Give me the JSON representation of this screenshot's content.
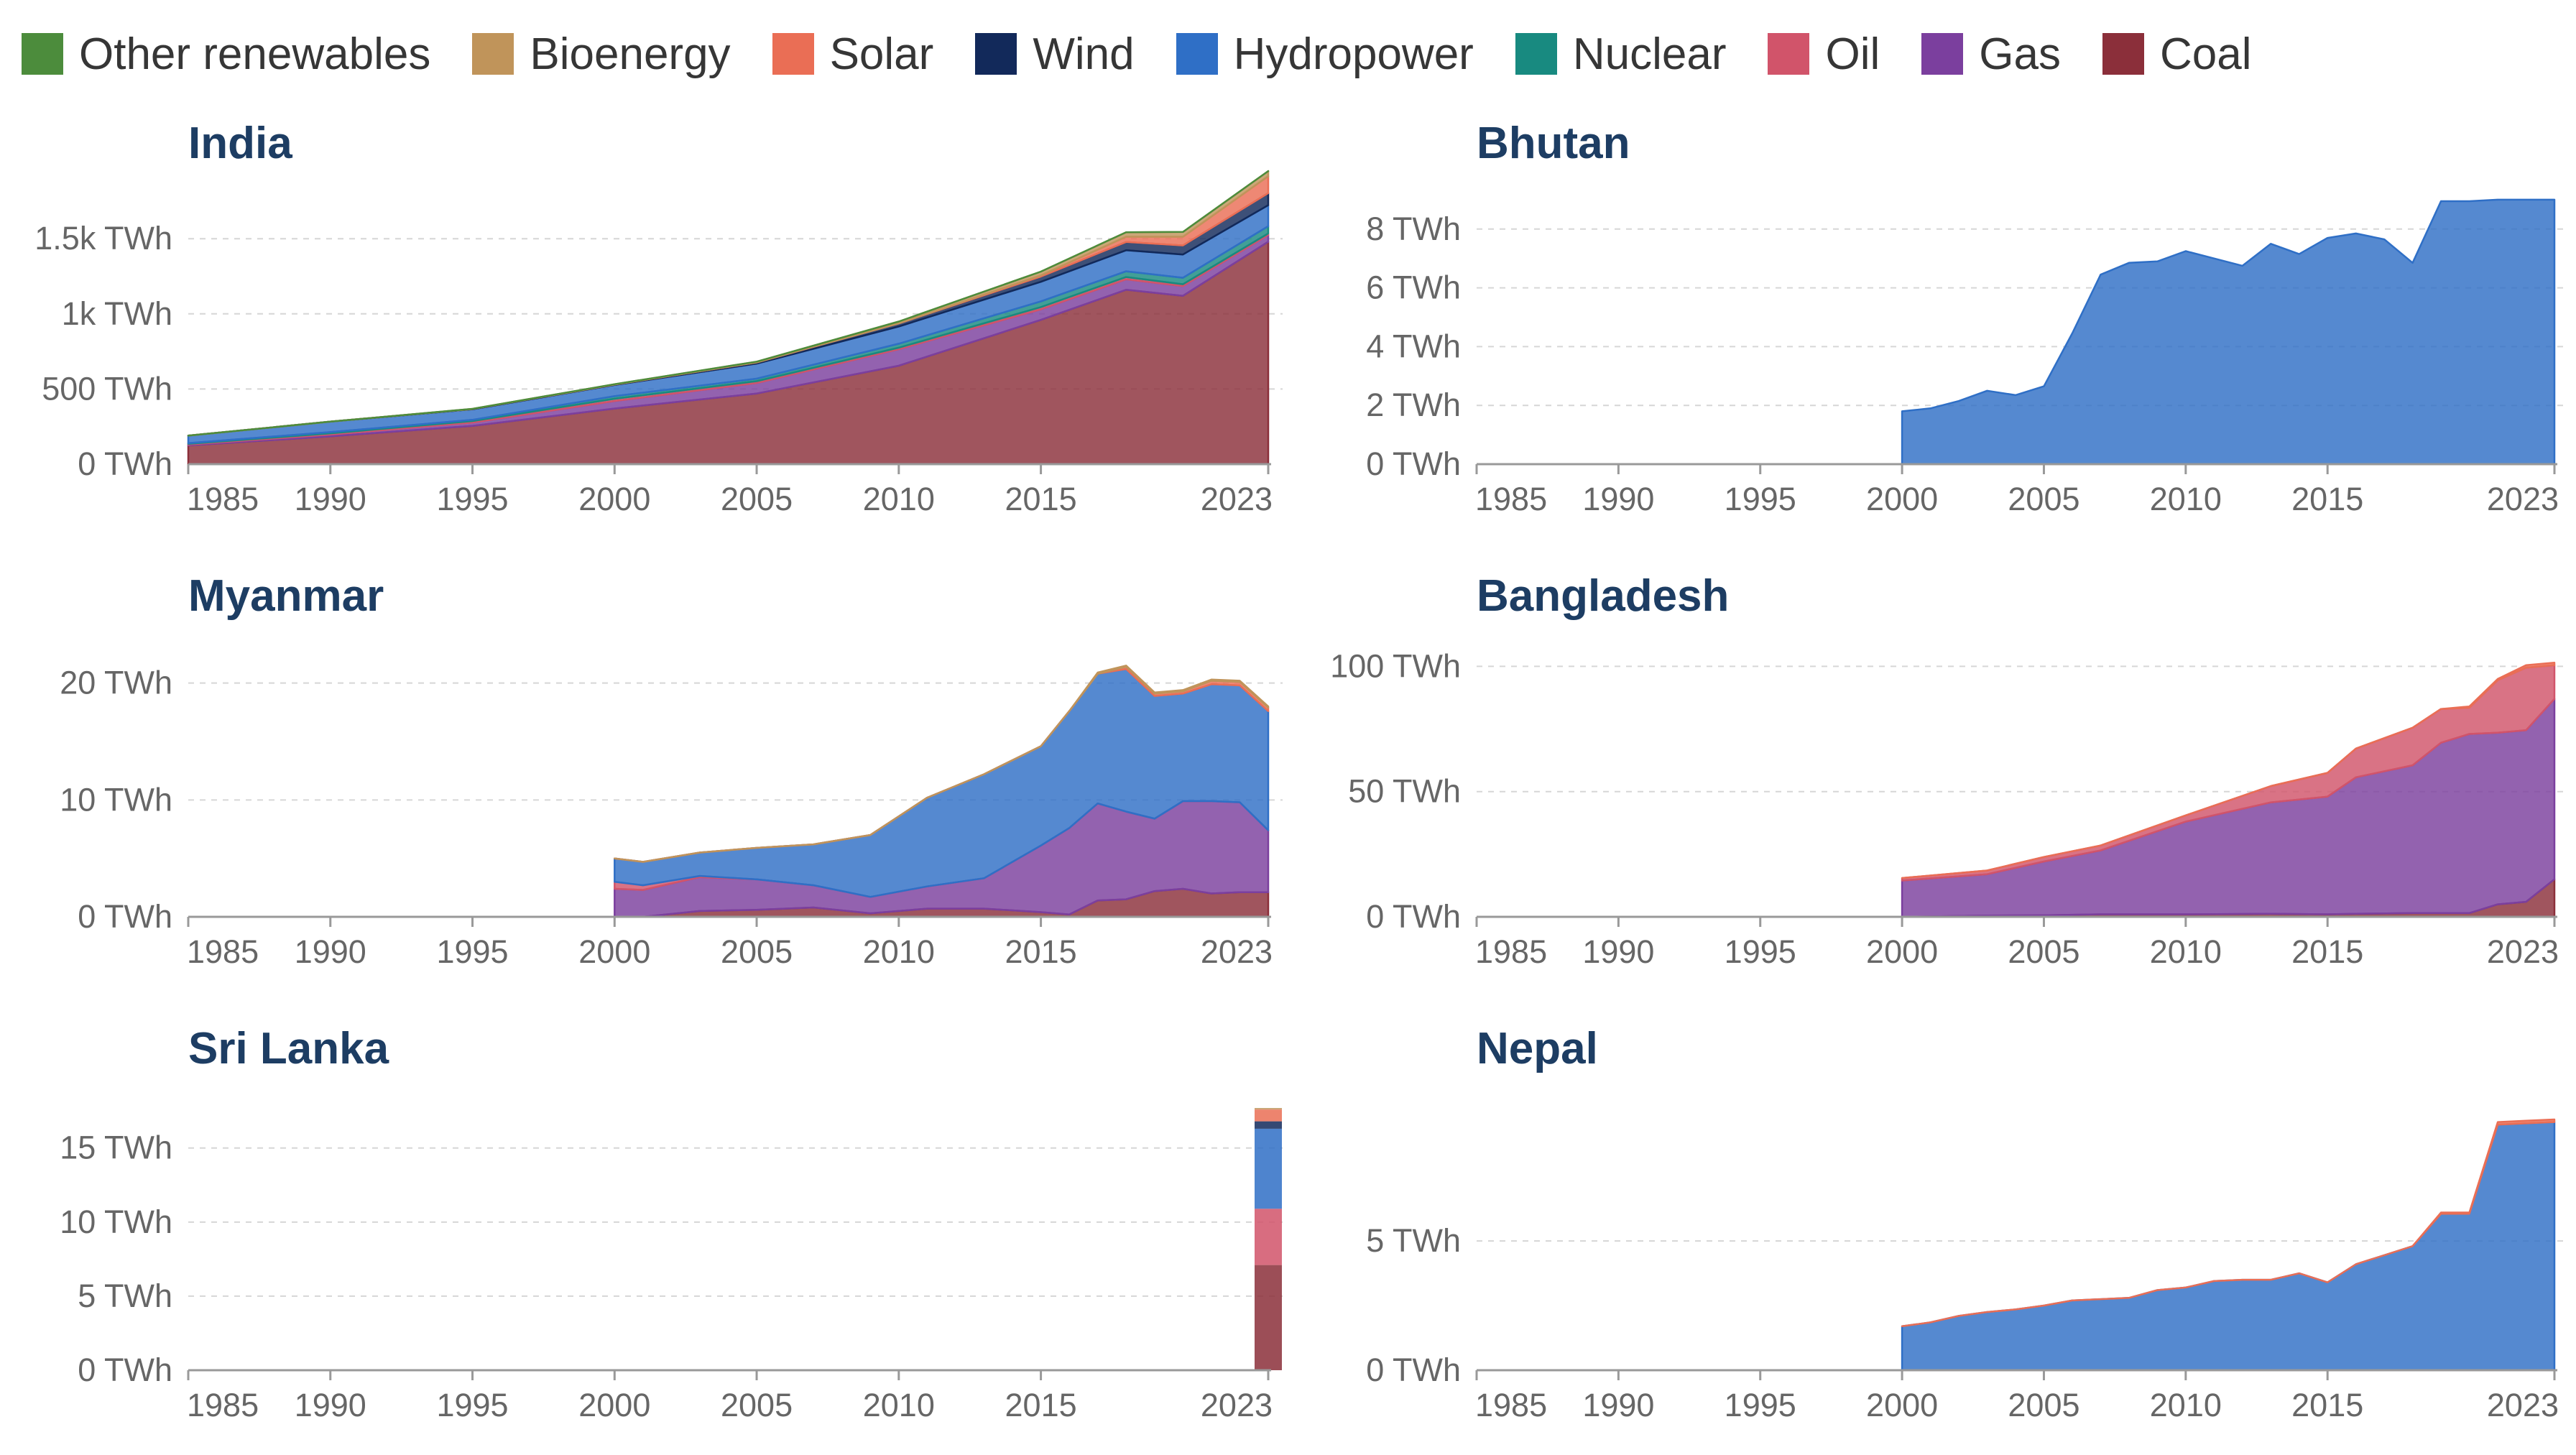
{
  "legend": [
    {
      "label": "Other renewables",
      "color": "#4c8c3c"
    },
    {
      "label": "Bioenergy",
      "color": "#c0945a"
    },
    {
      "label": "Solar",
      "color": "#ea6e55"
    },
    {
      "label": "Wind",
      "color": "#12295a"
    },
    {
      "label": "Hydropower",
      "color": "#2f6fc6"
    },
    {
      "label": "Nuclear",
      "color": "#188a80"
    },
    {
      "label": "Oil",
      "color": "#d1546a"
    },
    {
      "label": "Gas",
      "color": "#7b3f9e"
    },
    {
      "label": "Coal",
      "color": "#8b2f3a"
    }
  ],
  "chart_data": [
    {
      "title": "India",
      "type": "area",
      "x_ticks": [
        "1985",
        "1990",
        "1995",
        "2000",
        "2005",
        "2010",
        "2015",
        "2023"
      ],
      "y_ticks": [
        {
          "value": 0,
          "label": "0 TWh"
        },
        {
          "value": 500,
          "label": "500 TWh"
        },
        {
          "value": 1000,
          "label": "1k TWh"
        },
        {
          "value": 1500,
          "label": "1.5k TWh"
        }
      ],
      "xlim": [
        1985,
        2023
      ],
      "ylim": [
        0,
        1740
      ],
      "x": [
        1985,
        1990,
        1995,
        2000,
        2005,
        2010,
        2015,
        2018,
        2020,
        2023
      ],
      "series": [
        {
          "name": "Coal",
          "color": "#8b2f3a",
          "values": [
            125,
            185,
            255,
            370,
            470,
            655,
            960,
            1160,
            1120,
            1480
          ]
        },
        {
          "name": "Gas",
          "color": "#7b3f9e",
          "values": [
            5,
            12,
            22,
            50,
            70,
            110,
            70,
            70,
            65,
            45
          ]
        },
        {
          "name": "Oil",
          "color": "#d1546a",
          "values": [
            5,
            8,
            10,
            15,
            12,
            10,
            15,
            15,
            12,
            10
          ]
        },
        {
          "name": "Nuclear",
          "color": "#188a80",
          "values": [
            5,
            8,
            8,
            17,
            17,
            26,
            38,
            38,
            43,
            48
          ]
        },
        {
          "name": "Hydropower",
          "color": "#2f6fc6",
          "values": [
            50,
            70,
            70,
            75,
            100,
            115,
            130,
            140,
            155,
            140
          ]
        },
        {
          "name": "Wind",
          "color": "#12295a",
          "values": [
            0,
            0,
            2,
            3,
            8,
            20,
            35,
            55,
            60,
            80
          ]
        },
        {
          "name": "Solar",
          "color": "#ea6e55",
          "values": [
            0,
            0,
            0,
            0,
            0,
            1,
            8,
            35,
            58,
            113
          ]
        },
        {
          "name": "Bioenergy",
          "color": "#c0945a",
          "values": [
            0,
            0,
            1,
            2,
            5,
            12,
            25,
            30,
            32,
            34
          ]
        },
        {
          "name": "Other renewables",
          "color": "#4c8c3c",
          "values": [
            0,
            0,
            0,
            0,
            0,
            0,
            0,
            0,
            0,
            0
          ]
        }
      ]
    },
    {
      "title": "Bhutan",
      "type": "area",
      "x_ticks": [
        "1985",
        "1990",
        "1995",
        "2000",
        "2005",
        "2010",
        "2015",
        "2023"
      ],
      "y_ticks": [
        {
          "value": 0,
          "label": "0 TWh"
        },
        {
          "value": 2,
          "label": "2 TWh"
        },
        {
          "value": 4,
          "label": "4 TWh"
        },
        {
          "value": 6,
          "label": "6 TWh"
        },
        {
          "value": 8,
          "label": "8 TWh"
        }
      ],
      "xlim": [
        1985,
        2023
      ],
      "ylim": [
        0,
        8.9
      ],
      "x": [
        2000,
        2001,
        2002,
        2003,
        2004,
        2005,
        2006,
        2007,
        2008,
        2009,
        2010,
        2011,
        2012,
        2013,
        2014,
        2015,
        2016,
        2017,
        2018,
        2019,
        2020,
        2021,
        2022,
        2023
      ],
      "series": [
        {
          "name": "Hydropower",
          "color": "#2f6fc6",
          "values": [
            1.8,
            1.9,
            2.15,
            2.5,
            2.35,
            2.65,
            4.45,
            6.45,
            6.85,
            6.9,
            7.25,
            7.0,
            6.75,
            7.5,
            7.15,
            7.7,
            7.85,
            7.65,
            6.85,
            8.95,
            8.95,
            9.0,
            9.0,
            9.0
          ]
        }
      ]
    },
    {
      "title": "Myanmar",
      "type": "area",
      "x_ticks": [
        "1985",
        "1990",
        "1995",
        "2000",
        "2005",
        "2010",
        "2015",
        "2023"
      ],
      "y_ticks": [
        {
          "value": 0,
          "label": "0 TWh"
        },
        {
          "value": 10,
          "label": "10 TWh"
        },
        {
          "value": 20,
          "label": "20 TWh"
        }
      ],
      "xlim": [
        1985,
        2023
      ],
      "ylim": [
        0,
        22.5
      ],
      "x": [
        2000,
        2001,
        2003,
        2005,
        2007,
        2009,
        2011,
        2013,
        2015,
        2016,
        2017,
        2018,
        2019,
        2020,
        2021,
        2022,
        2023
      ],
      "series": [
        {
          "name": "Coal",
          "color": "#8b2f3a",
          "values": [
            0,
            0,
            0.5,
            0.6,
            0.8,
            0.3,
            0.7,
            0.7,
            0.4,
            0.2,
            1.4,
            1.5,
            2.2,
            2.4,
            2.0,
            2.1,
            2.1
          ]
        },
        {
          "name": "Gas",
          "color": "#7b3f9e",
          "values": [
            2.4,
            2.3,
            2.9,
            2.6,
            1.9,
            1.4,
            1.9,
            2.6,
            5.7,
            7.4,
            8.3,
            7.5,
            6.2,
            7.5,
            7.9,
            7.7,
            5.3
          ]
        },
        {
          "name": "Oil",
          "color": "#d1546a",
          "values": [
            0.6,
            0.4,
            0.1,
            0,
            0,
            0,
            0,
            0,
            0,
            0,
            0,
            0,
            0,
            0,
            0,
            0,
            0
          ]
        },
        {
          "name": "Hydropower",
          "color": "#2f6fc6",
          "values": [
            2.0,
            2.0,
            2.0,
            2.7,
            3.5,
            5.3,
            7.6,
            8.9,
            8.5,
            10.0,
            11.1,
            12.2,
            10.5,
            9.2,
            10.0,
            10.0,
            10.2
          ]
        },
        {
          "name": "Solar",
          "color": "#ea6e55",
          "values": [
            0,
            0,
            0,
            0,
            0,
            0,
            0,
            0,
            0,
            0,
            0,
            0.2,
            0.2,
            0.2,
            0.3,
            0.3,
            0.3
          ]
        },
        {
          "name": "Bioenergy",
          "color": "#c0945a",
          "values": [
            0,
            0,
            0,
            0,
            0,
            0,
            0,
            0,
            0,
            0,
            0.1,
            0.1,
            0.1,
            0.1,
            0.1,
            0.1,
            0.1
          ]
        }
      ]
    },
    {
      "title": "Bangladesh",
      "type": "area",
      "x_ticks": [
        "1985",
        "1990",
        "1995",
        "2000",
        "2005",
        "2010",
        "2015",
        "2023"
      ],
      "y_ticks": [
        {
          "value": 0,
          "label": "0 TWh"
        },
        {
          "value": 50,
          "label": "50 TWh"
        },
        {
          "value": 100,
          "label": "100 TWh"
        }
      ],
      "xlim": [
        1985,
        2023
      ],
      "ylim": [
        0,
        105
      ],
      "x": [
        2000,
        2003,
        2005,
        2007,
        2010,
        2013,
        2015,
        2016,
        2018,
        2019,
        2020,
        2021,
        2022,
        2023
      ],
      "series": [
        {
          "name": "Coal",
          "color": "#8b2f3a",
          "values": [
            0,
            0.5,
            0.6,
            1.0,
            1.0,
            1.2,
            1.0,
            1.2,
            1.5,
            1.5,
            1.5,
            5.0,
            6.0,
            15.0
          ]
        },
        {
          "name": "Gas",
          "color": "#7b3f9e",
          "values": [
            14.5,
            16.5,
            21.5,
            25.5,
            37.0,
            44.5,
            47.0,
            54.5,
            59.0,
            68.0,
            71.5,
            68.5,
            68.5,
            72.0
          ]
        },
        {
          "name": "Oil",
          "color": "#d1546a",
          "values": [
            1.0,
            1.5,
            1.8,
            2.0,
            2.5,
            6.5,
            9.5,
            11.5,
            15.0,
            13.5,
            10.5,
            21.0,
            25.0,
            13.5
          ]
        },
        {
          "name": "Solar",
          "color": "#ea6e55",
          "values": [
            0,
            0,
            0,
            0,
            0,
            0,
            0,
            0,
            0,
            0,
            0.5,
            0.5,
            1.0,
            1.0
          ]
        }
      ]
    },
    {
      "title": "Sri Lanka",
      "type": "bar",
      "x_ticks": [
        "1985",
        "1990",
        "1995",
        "2000",
        "2005",
        "2010",
        "2015",
        "2023"
      ],
      "y_ticks": [
        {
          "value": 0,
          "label": "0 TWh"
        },
        {
          "value": 5,
          "label": "5 TWh"
        },
        {
          "value": 10,
          "label": "10 TWh"
        },
        {
          "value": 15,
          "label": "15 TWh"
        }
      ],
      "xlim": [
        1985,
        2023
      ],
      "ylim": [
        0,
        17.8
      ],
      "x": [
        2023
      ],
      "series": [
        {
          "name": "Coal",
          "color": "#8b2f3a",
          "values": [
            7.1
          ]
        },
        {
          "name": "Oil",
          "color": "#d1546a",
          "values": [
            3.8
          ]
        },
        {
          "name": "Hydropower",
          "color": "#2f6fc6",
          "values": [
            5.4
          ]
        },
        {
          "name": "Wind",
          "color": "#12295a",
          "values": [
            0.5
          ]
        },
        {
          "name": "Solar",
          "color": "#ea6e55",
          "values": [
            0.8
          ]
        },
        {
          "name": "Bioenergy",
          "color": "#c0945a",
          "values": [
            0.1
          ]
        }
      ]
    },
    {
      "title": "Nepal",
      "type": "area",
      "x_ticks": [
        "1985",
        "1990",
        "1995",
        "2000",
        "2005",
        "2010",
        "2015",
        "2023"
      ],
      "y_ticks": [
        {
          "value": 0,
          "label": "0 TWh"
        },
        {
          "value": 5,
          "label": "5 TWh"
        }
      ],
      "xlim": [
        1985,
        2023
      ],
      "ylim": [
        0,
        10.2
      ],
      "x": [
        2000,
        2001,
        2002,
        2003,
        2004,
        2005,
        2006,
        2007,
        2008,
        2009,
        2010,
        2011,
        2012,
        2013,
        2014,
        2015,
        2016,
        2017,
        2018,
        2019,
        2020,
        2021,
        2022,
        2023
      ],
      "series": [
        {
          "name": "Hydropower",
          "color": "#2f6fc6",
          "values": [
            1.7,
            1.85,
            2.1,
            2.25,
            2.35,
            2.5,
            2.7,
            2.75,
            2.8,
            3.1,
            3.2,
            3.45,
            3.5,
            3.5,
            3.75,
            3.4,
            4.1,
            4.45,
            4.8,
            6.05,
            6.05,
            9.5,
            9.55,
            9.6
          ]
        },
        {
          "name": "Solar",
          "color": "#ea6e55",
          "values": [
            0,
            0,
            0,
            0,
            0,
            0,
            0,
            0,
            0,
            0,
            0,
            0,
            0,
            0,
            0,
            0,
            0,
            0,
            0,
            0.05,
            0.05,
            0.1,
            0.1,
            0.1
          ]
        }
      ]
    }
  ]
}
